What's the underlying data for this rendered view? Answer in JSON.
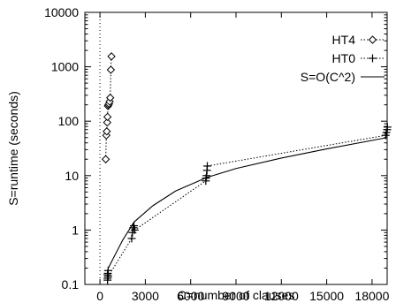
{
  "chart_data": {
    "type": "scatter",
    "title": "",
    "xlabel": "C=number of clauses",
    "ylabel": "S=runtime (seconds)",
    "xlim": [
      -1000,
      19000
    ],
    "ylim": [
      0.1,
      10000
    ],
    "yscale": "log",
    "grid": false,
    "legend_position": "top-right",
    "x_ticks": [
      0,
      3000,
      6000,
      9000,
      12000,
      15000,
      18000
    ],
    "x_tick_labels": [
      "0",
      "3000",
      "6000",
      "9000",
      "12000",
      "15000",
      "18000"
    ],
    "y_ticks": [
      0.1,
      1,
      10,
      100,
      1000,
      10000
    ],
    "y_tick_labels": [
      "0.1",
      "1",
      "10",
      "100",
      "1000",
      "10000"
    ],
    "series": [
      {
        "name": "HT4",
        "marker": "diamond",
        "line": "dotted",
        "points": [
          [
            380,
            20
          ],
          [
            420,
            55
          ],
          [
            450,
            65
          ],
          [
            480,
            95
          ],
          [
            500,
            120
          ],
          [
            530,
            190
          ],
          [
            560,
            200
          ],
          [
            600,
            210
          ],
          [
            640,
            230
          ],
          [
            680,
            270
          ],
          [
            720,
            880
          ],
          [
            760,
            1550
          ]
        ]
      },
      {
        "name": "HT0",
        "marker": "plus",
        "line": "dotted",
        "points": [
          [
            500,
            0.12
          ],
          [
            500,
            0.13
          ],
          [
            500,
            0.15
          ],
          [
            520,
            0.16
          ],
          [
            540,
            0.18
          ],
          [
            540,
            0.14
          ],
          [
            2100,
            0.7
          ],
          [
            2150,
            0.9
          ],
          [
            2200,
            1.1
          ],
          [
            2250,
            1.2
          ],
          [
            2300,
            1.0
          ],
          [
            7000,
            8.0
          ],
          [
            7020,
            9.0
          ],
          [
            7050,
            10.0
          ],
          [
            7080,
            12.5
          ],
          [
            7100,
            15.0
          ],
          [
            18900,
            55
          ],
          [
            18950,
            62
          ],
          [
            19000,
            70
          ],
          [
            19020,
            78
          ]
        ]
      },
      {
        "name": "S=O(C^2)",
        "marker": "none",
        "line": "solid",
        "points": [
          [
            550,
            0.2
          ],
          [
            1500,
            0.65
          ],
          [
            2250,
            1.4
          ],
          [
            3500,
            2.8
          ],
          [
            5000,
            5.2
          ],
          [
            7050,
            9.2
          ],
          [
            9000,
            13.5
          ],
          [
            12000,
            21
          ],
          [
            15000,
            31
          ],
          [
            19000,
            50
          ]
        ]
      }
    ],
    "annotations": [
      {
        "type": "vertical-dotted-line",
        "x": 0
      }
    ]
  }
}
